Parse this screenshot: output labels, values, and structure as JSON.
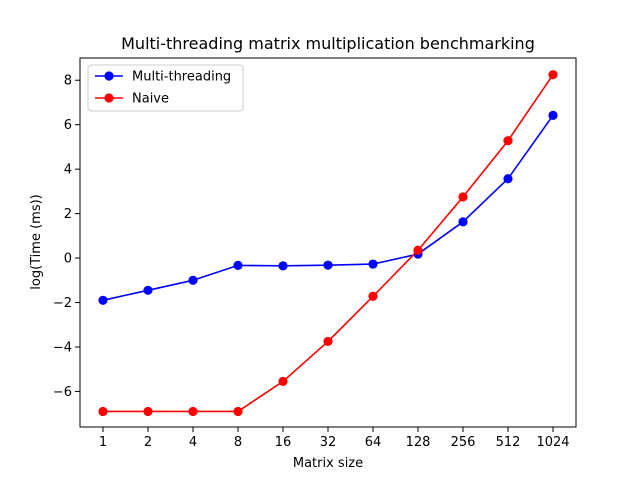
{
  "chart_data": {
    "type": "line",
    "title": "Multi-threading matrix multiplication benchmarking",
    "xlabel": "Matrix size",
    "ylabel": "log(Time (ms))",
    "categories": [
      "1",
      "2",
      "4",
      "8",
      "16",
      "32",
      "64",
      "128",
      "256",
      "512",
      "1024"
    ],
    "ylim": [
      -7.6,
      9.0
    ],
    "yticks": [
      -6,
      -4,
      -2,
      0,
      2,
      4,
      6,
      8
    ],
    "ytick_labels": [
      "−6",
      "−4",
      "−2",
      "0",
      "2",
      "4",
      "6",
      "8"
    ],
    "grid": false,
    "legend_position": "top-left",
    "series": [
      {
        "name": "Multi-threading",
        "color": "#0000ff",
        "marker": "circle",
        "values": [
          -1.9,
          -1.45,
          -1.0,
          -0.33,
          -0.35,
          -0.32,
          -0.27,
          0.18,
          1.63,
          3.57,
          6.42
        ]
      },
      {
        "name": "Naive",
        "color": "#ff0000",
        "marker": "circle",
        "values": [
          -6.9,
          -6.9,
          -6.9,
          -6.9,
          -5.55,
          -3.75,
          -1.72,
          0.35,
          2.75,
          5.28,
          8.25
        ]
      }
    ]
  }
}
